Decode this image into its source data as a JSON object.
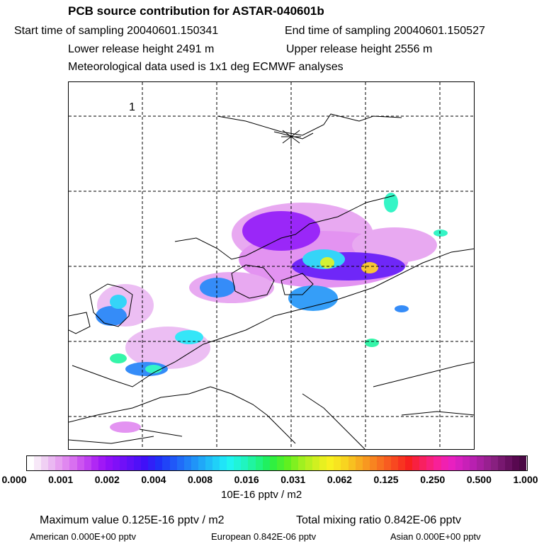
{
  "title": "PCB source contribution for ASTAR-040601b",
  "header": {
    "start_time": "Start time of sampling 20040601.150341",
    "end_time": "End time of sampling 20040601.150527",
    "lower_release": "Lower release height 2491 m",
    "upper_release": "Upper release height 2556 m",
    "met_data": "Meteorological data used is 1x1 deg ECMWF analyses"
  },
  "map": {
    "marker_label": "1",
    "grid_style": "dashed",
    "coastline_color": "#000000"
  },
  "colorbar": {
    "ticks": [
      "0.000",
      "0.001",
      "0.002",
      "0.004",
      "0.008",
      "0.016",
      "0.031",
      "0.062",
      "0.125",
      "0.250",
      "0.500",
      "1.000"
    ],
    "colors": [
      "#ffffff",
      "#f7e8f8",
      "#f0d0f4",
      "#eab8f2",
      "#e6a0f0",
      "#e088f0",
      "#d870f0",
      "#cc55f0",
      "#bf40f2",
      "#b028f4",
      "#a018f6",
      "#9010f8",
      "#8010f8",
      "#7010f8",
      "#6010f8",
      "#5010f8",
      "#4010f8",
      "#3020f8",
      "#2030f8",
      "#2044f8",
      "#2058f8",
      "#206cf8",
      "#2080f8",
      "#2094f8",
      "#20a8f8",
      "#20bcf8",
      "#20d0f8",
      "#20e4f8",
      "#20f4f0",
      "#20f4d8",
      "#20f4c0",
      "#20f4a0",
      "#20f480",
      "#20f060",
      "#30f040",
      "#48f030",
      "#60f020",
      "#80f020",
      "#a0f020",
      "#b8f020",
      "#d0f020",
      "#e8f020",
      "#f8f020",
      "#f8e420",
      "#f8d420",
      "#f8c020",
      "#f8ac20",
      "#f89820",
      "#f88420",
      "#f87020",
      "#f85c20",
      "#f84820",
      "#f83420",
      "#f82020",
      "#f82040",
      "#f82060",
      "#f8207c",
      "#f82098",
      "#f020b0",
      "#e820c0",
      "#d820c0",
      "#c820b8",
      "#b820b0",
      "#a820a0",
      "#982090",
      "#882080",
      "#781870",
      "#681060",
      "#580850",
      "#4a0844"
    ],
    "units": "10E-16 pptv / m2"
  },
  "stats": {
    "max_value": "Maximum value  0.125E-16 pptv / m2",
    "total_mixing": "Total mixing ratio  0.842E-06 pptv",
    "american": "American  0.000E+00 pptv",
    "european": "European  0.842E-06 pptv",
    "asian": "Asian  0.000E+00 pptv"
  }
}
